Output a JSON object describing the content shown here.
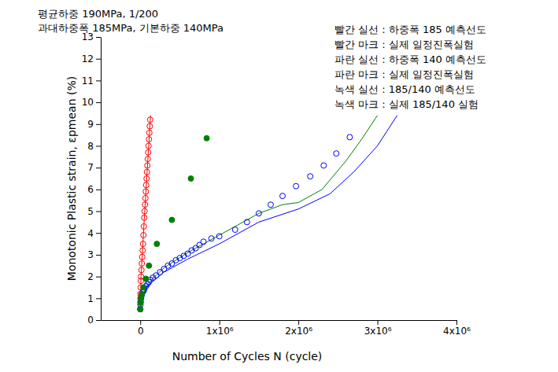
{
  "chart_data": {
    "type": "scatter",
    "annotations": [
      "평균하중 190MPa, 1/200",
      "과대하중폭 185MPa, 기본하중 140MPa"
    ],
    "x_label": "Number of Cycles N (cycle)",
    "y_label": "Monotonic Plastic strain, εpmean (%)",
    "xlim": [
      -500000,
      4000000
    ],
    "xticks": [
      0,
      {
        "value": 1000000,
        "label": "1x10⁶"
      },
      {
        "value": 2000000,
        "label": "2x10⁶"
      },
      {
        "value": 3000000,
        "label": "3x10⁶"
      },
      {
        "value": 4000000,
        "label": "4x10⁶"
      }
    ],
    "ylim": [
      0,
      13
    ],
    "yticks": [
      0,
      1,
      2,
      3,
      4,
      5,
      6,
      7,
      8,
      9,
      10,
      11,
      12,
      13
    ],
    "grid": false,
    "legend": "upper right",
    "series": [
      {
        "name": "빨간 실선 : 하중폭 185 예측선도",
        "color": "#ff0000",
        "type": "line",
        "line_style": "solid",
        "x": [
          0,
          10000,
          50000,
          100000,
          130000
        ],
        "values": [
          0.5,
          2.0,
          4.6,
          7.6,
          9.4
        ]
      },
      {
        "name": "빨간 마크 : 실제 일정진폭실험",
        "color": "#ff0000",
        "type": "scatter",
        "marker": "circle-open",
        "x": [
          0,
          1000,
          2000,
          3000,
          5000,
          8000,
          10000,
          15000,
          20000,
          25000,
          30000,
          35000,
          40000,
          45000,
          50000,
          55000,
          60000,
          65000,
          70000,
          75000,
          80000,
          85000,
          90000,
          95000,
          100000,
          105000,
          110000,
          115000,
          120000,
          125000
        ],
        "values": [
          0.5,
          0.8,
          1.0,
          1.2,
          1.5,
          1.8,
          2.0,
          2.3,
          2.6,
          2.9,
          3.2,
          3.5,
          3.9,
          4.3,
          4.7,
          5.0,
          5.3,
          5.6,
          5.9,
          6.2,
          6.5,
          6.8,
          7.1,
          7.4,
          7.7,
          8.0,
          8.3,
          8.6,
          8.9,
          9.2
        ]
      },
      {
        "name": "파란 실선 : 하중폭 140 예측선도",
        "color": "#0000ff",
        "type": "line",
        "line_style": "solid",
        "x": [
          0,
          20000,
          100000,
          300000,
          600000,
          1000000,
          1500000,
          2000000,
          2400000,
          2700000,
          3000000,
          3250000
        ],
        "values": [
          0.5,
          1.0,
          1.6,
          2.2,
          2.8,
          3.5,
          4.5,
          5.1,
          5.8,
          6.8,
          8.0,
          9.4
        ]
      },
      {
        "name": "파란 마크 : 실제 일정진폭실험",
        "color": "#0000ff",
        "type": "scatter",
        "marker": "circle-open",
        "x": [
          0,
          2000,
          5000,
          10000,
          20000,
          35000,
          50000,
          70000,
          90000,
          110000,
          130000,
          160000,
          200000,
          250000,
          300000,
          350000,
          400000,
          450000,
          500000,
          550000,
          600000,
          650000,
          700000,
          750000,
          800000,
          900000,
          1000000,
          1200000,
          1350000,
          1500000,
          1650000,
          1800000,
          1970000,
          2150000,
          2320000,
          2480000,
          2650000
        ],
        "values": [
          0.5,
          0.7,
          0.85,
          1.0,
          1.15,
          1.3,
          1.4,
          1.55,
          1.65,
          1.75,
          1.85,
          1.95,
          2.05,
          2.2,
          2.35,
          2.5,
          2.6,
          2.75,
          2.85,
          2.95,
          3.05,
          3.2,
          3.3,
          3.45,
          3.6,
          3.75,
          3.85,
          4.15,
          4.5,
          4.9,
          5.3,
          5.7,
          6.15,
          6.6,
          7.1,
          7.65,
          8.4
        ]
      },
      {
        "name": "녹색 실선 : 185/140 예측선도",
        "color": "#008000",
        "type": "line",
        "line_style": "solid",
        "x": [
          0,
          20000,
          100000,
          300000,
          600000,
          1000000,
          1500000,
          1800000,
          2000000,
          2300000,
          2600000,
          2800000,
          3000000
        ],
        "values": [
          0.5,
          1.05,
          1.7,
          2.4,
          3.1,
          3.9,
          4.9,
          5.3,
          5.4,
          6.0,
          7.3,
          8.3,
          9.4
        ]
      },
      {
        "name": "녹색 마크 : 실제 185/140 실험",
        "color": "#008000",
        "type": "scatter",
        "marker": "circle",
        "x": [
          0,
          5000,
          10000,
          20000,
          40000,
          70000,
          110000,
          210000,
          400000,
          640000,
          840000
        ],
        "values": [
          0.5,
          0.8,
          1.0,
          1.2,
          1.5,
          1.9,
          2.5,
          3.5,
          4.6,
          6.5,
          8.35
        ]
      }
    ]
  }
}
